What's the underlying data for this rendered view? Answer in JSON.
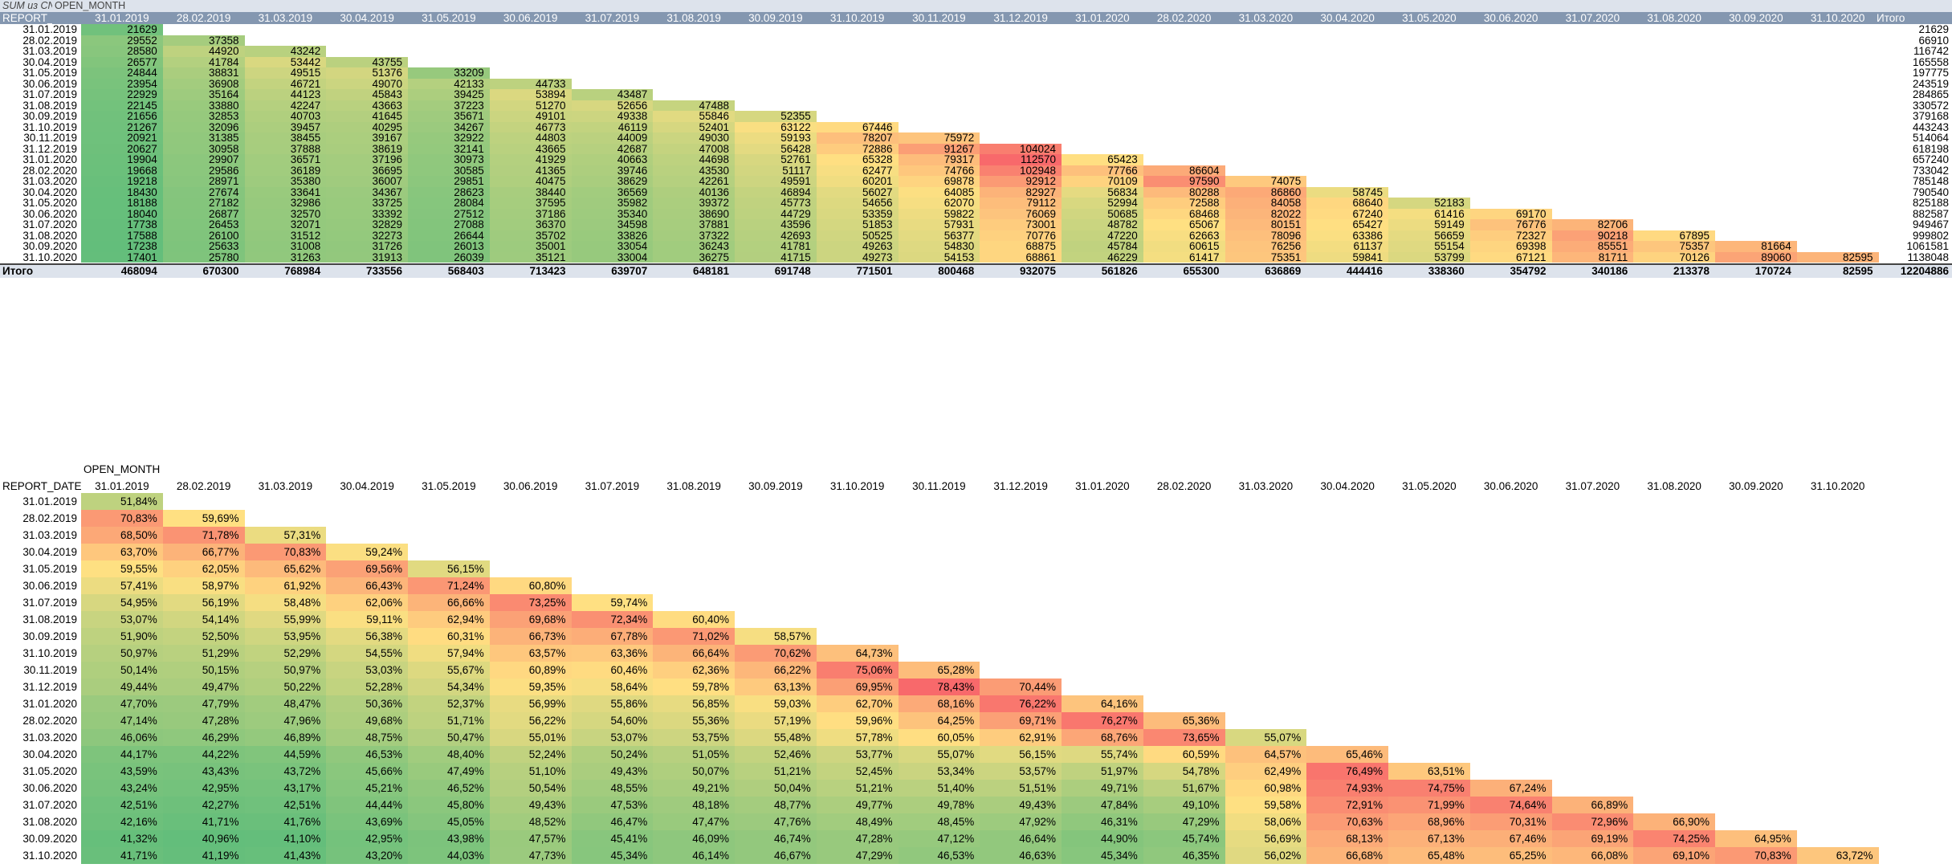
{
  "pivot1": {
    "title_field": "SUM из CNT_C",
    "column_field": "OPEN_MONTH",
    "row_field": "REPORT_DATE",
    "total_label": "Итого",
    "columns": [
      "31.01.2019",
      "28.02.2019",
      "31.03.2019",
      "30.04.2019",
      "31.05.2019",
      "30.06.2019",
      "31.07.2019",
      "31.08.2019",
      "30.09.2019",
      "31.10.2019",
      "30.11.2019",
      "31.12.2019",
      "31.01.2020",
      "28.02.2020",
      "31.03.2020",
      "30.04.2020",
      "31.05.2020",
      "30.06.2020",
      "31.07.2020",
      "31.08.2020",
      "30.09.2020",
      "31.10.2020"
    ],
    "rows": [
      {
        "label": "31.01.2019",
        "values": [
          "21629"
        ],
        "total": "21629"
      },
      {
        "label": "28.02.2019",
        "values": [
          "29552",
          "37358"
        ],
        "total": "66910"
      },
      {
        "label": "31.03.2019",
        "values": [
          "28580",
          "44920",
          "43242"
        ],
        "total": "116742"
      },
      {
        "label": "30.04.2019",
        "values": [
          "26577",
          "41784",
          "53442",
          "43755"
        ],
        "total": "165558"
      },
      {
        "label": "31.05.2019",
        "values": [
          "24844",
          "38831",
          "49515",
          "51376",
          "33209"
        ],
        "total": "197775"
      },
      {
        "label": "30.06.2019",
        "values": [
          "23954",
          "36908",
          "46721",
          "49070",
          "42133",
          "44733"
        ],
        "total": "243519"
      },
      {
        "label": "31.07.2019",
        "values": [
          "22929",
          "35164",
          "44123",
          "45843",
          "39425",
          "53894",
          "43487"
        ],
        "total": "284865"
      },
      {
        "label": "31.08.2019",
        "values": [
          "22145",
          "33880",
          "42247",
          "43663",
          "37223",
          "51270",
          "52656",
          "47488"
        ],
        "total": "330572"
      },
      {
        "label": "30.09.2019",
        "values": [
          "21656",
          "32853",
          "40703",
          "41645",
          "35671",
          "49101",
          "49338",
          "55846",
          "52355"
        ],
        "total": "379168"
      },
      {
        "label": "31.10.2019",
        "values": [
          "21267",
          "32096",
          "39457",
          "40295",
          "34267",
          "46773",
          "46119",
          "52401",
          "63122",
          "67446"
        ],
        "total": "443243"
      },
      {
        "label": "30.11.2019",
        "values": [
          "20921",
          "31385",
          "38455",
          "39167",
          "32922",
          "44803",
          "44009",
          "49030",
          "59193",
          "78207",
          "75972"
        ],
        "total": "514064"
      },
      {
        "label": "31.12.2019",
        "values": [
          "20627",
          "30958",
          "37888",
          "38619",
          "32141",
          "43665",
          "42687",
          "47008",
          "56428",
          "72886",
          "91267",
          "104024"
        ],
        "total": "618198"
      },
      {
        "label": "31.01.2020",
        "values": [
          "19904",
          "29907",
          "36571",
          "37196",
          "30973",
          "41929",
          "40663",
          "44698",
          "52761",
          "65328",
          "79317",
          "112570",
          "65423"
        ],
        "total": "657240"
      },
      {
        "label": "28.02.2020",
        "values": [
          "19668",
          "29586",
          "36189",
          "36695",
          "30585",
          "41365",
          "39746",
          "43530",
          "51117",
          "62477",
          "74766",
          "102948",
          "77766",
          "86604"
        ],
        "total": "733042"
      },
      {
        "label": "31.03.2020",
        "values": [
          "19218",
          "28971",
          "35380",
          "36007",
          "29851",
          "40475",
          "38629",
          "42261",
          "49591",
          "60201",
          "69878",
          "92912",
          "70109",
          "97590",
          "74075"
        ],
        "total": "785148"
      },
      {
        "label": "30.04.2020",
        "values": [
          "18430",
          "27674",
          "33641",
          "34367",
          "28623",
          "38440",
          "36569",
          "40136",
          "46894",
          "56027",
          "64085",
          "82927",
          "56834",
          "80288",
          "86860",
          "58745"
        ],
        "total": "790540"
      },
      {
        "label": "31.05.2020",
        "values": [
          "18188",
          "27182",
          "32986",
          "33725",
          "28084",
          "37595",
          "35982",
          "39372",
          "45773",
          "54656",
          "62070",
          "79112",
          "52994",
          "72588",
          "84058",
          "68640",
          "52183"
        ],
        "total": "825188"
      },
      {
        "label": "30.06.2020",
        "values": [
          "18040",
          "26877",
          "32570",
          "33392",
          "27512",
          "37186",
          "35340",
          "38690",
          "44729",
          "53359",
          "59822",
          "76069",
          "50685",
          "68468",
          "82022",
          "67240",
          "61416",
          "69170"
        ],
        "total": "882587"
      },
      {
        "label": "31.07.2020",
        "values": [
          "17738",
          "26453",
          "32071",
          "32829",
          "27088",
          "36370",
          "34598",
          "37881",
          "43596",
          "51853",
          "57931",
          "73001",
          "48782",
          "65067",
          "80151",
          "65427",
          "59149",
          "76776",
          "82706"
        ],
        "total": "949467"
      },
      {
        "label": "31.08.2020",
        "values": [
          "17588",
          "26100",
          "31512",
          "32273",
          "26644",
          "35702",
          "33826",
          "37322",
          "42693",
          "50525",
          "56377",
          "70776",
          "47220",
          "62663",
          "78096",
          "63386",
          "56659",
          "72327",
          "90218",
          "67895"
        ],
        "total": "999802"
      },
      {
        "label": "30.09.2020",
        "values": [
          "17238",
          "25633",
          "31008",
          "31726",
          "26013",
          "35001",
          "33054",
          "36243",
          "41781",
          "49263",
          "54830",
          "68875",
          "45784",
          "60615",
          "76256",
          "61137",
          "55154",
          "69398",
          "85551",
          "75357",
          "81664"
        ],
        "total": "1061581"
      },
      {
        "label": "31.10.2020",
        "values": [
          "17401",
          "25780",
          "31263",
          "31913",
          "26039",
          "35121",
          "33004",
          "36275",
          "41715",
          "49273",
          "54153",
          "68861",
          "46229",
          "61417",
          "75351",
          "59841",
          "53799",
          "67121",
          "81711",
          "70126",
          "89060",
          "82595"
        ],
        "total": "1138048"
      }
    ],
    "totals": [
      "468094",
      "670300",
      "768984",
      "733556",
      "568403",
      "713423",
      "639707",
      "648181",
      "691748",
      "771501",
      "800468",
      "932075",
      "561826",
      "655300",
      "636869",
      "444416",
      "338360",
      "354792",
      "340186",
      "213378",
      "170724",
      "82595"
    ],
    "grand_total": "12204886"
  },
  "pivot2": {
    "column_field": "OPEN_MONTH",
    "row_field": "REPORT_DATE",
    "columns": [
      "31.01.2019",
      "28.02.2019",
      "31.03.2019",
      "30.04.2019",
      "31.05.2019",
      "30.06.2019",
      "31.07.2019",
      "31.08.2019",
      "30.09.2019",
      "31.10.2019",
      "30.11.2019",
      "31.12.2019",
      "31.01.2020",
      "28.02.2020",
      "31.03.2020",
      "30.04.2020",
      "31.05.2020",
      "30.06.2020",
      "31.07.2020",
      "31.08.2020",
      "30.09.2020",
      "31.10.2020"
    ],
    "rows": [
      {
        "label": "31.01.2019",
        "values": [
          "51,84%"
        ]
      },
      {
        "label": "28.02.2019",
        "values": [
          "70,83%",
          "59,69%"
        ]
      },
      {
        "label": "31.03.2019",
        "values": [
          "68,50%",
          "71,78%",
          "57,31%"
        ]
      },
      {
        "label": "30.04.2019",
        "values": [
          "63,70%",
          "66,77%",
          "70,83%",
          "59,24%"
        ]
      },
      {
        "label": "31.05.2019",
        "values": [
          "59,55%",
          "62,05%",
          "65,62%",
          "69,56%",
          "56,15%"
        ]
      },
      {
        "label": "30.06.2019",
        "values": [
          "57,41%",
          "58,97%",
          "61,92%",
          "66,43%",
          "71,24%",
          "60,80%"
        ]
      },
      {
        "label": "31.07.2019",
        "values": [
          "54,95%",
          "56,19%",
          "58,48%",
          "62,06%",
          "66,66%",
          "73,25%",
          "59,74%"
        ]
      },
      {
        "label": "31.08.2019",
        "values": [
          "53,07%",
          "54,14%",
          "55,99%",
          "59,11%",
          "62,94%",
          "69,68%",
          "72,34%",
          "60,40%"
        ]
      },
      {
        "label": "30.09.2019",
        "values": [
          "51,90%",
          "52,50%",
          "53,95%",
          "56,38%",
          "60,31%",
          "66,73%",
          "67,78%",
          "71,02%",
          "58,57%"
        ]
      },
      {
        "label": "31.10.2019",
        "values": [
          "50,97%",
          "51,29%",
          "52,29%",
          "54,55%",
          "57,94%",
          "63,57%",
          "63,36%",
          "66,64%",
          "70,62%",
          "64,73%"
        ]
      },
      {
        "label": "30.11.2019",
        "values": [
          "50,14%",
          "50,15%",
          "50,97%",
          "53,03%",
          "55,67%",
          "60,89%",
          "60,46%",
          "62,36%",
          "66,22%",
          "75,06%",
          "65,28%"
        ]
      },
      {
        "label": "31.12.2019",
        "values": [
          "49,44%",
          "49,47%",
          "50,22%",
          "52,28%",
          "54,34%",
          "59,35%",
          "58,64%",
          "59,78%",
          "63,13%",
          "69,95%",
          "78,43%",
          "70,44%"
        ]
      },
      {
        "label": "31.01.2020",
        "values": [
          "47,70%",
          "47,79%",
          "48,47%",
          "50,36%",
          "52,37%",
          "56,99%",
          "55,86%",
          "56,85%",
          "59,03%",
          "62,70%",
          "68,16%",
          "76,22%",
          "64,16%"
        ]
      },
      {
        "label": "28.02.2020",
        "values": [
          "47,14%",
          "47,28%",
          "47,96%",
          "49,68%",
          "51,71%",
          "56,22%",
          "54,60%",
          "55,36%",
          "57,19%",
          "59,96%",
          "64,25%",
          "69,71%",
          "76,27%",
          "65,36%"
        ]
      },
      {
        "label": "31.03.2020",
        "values": [
          "46,06%",
          "46,29%",
          "46,89%",
          "48,75%",
          "50,47%",
          "55,01%",
          "53,07%",
          "53,75%",
          "55,48%",
          "57,78%",
          "60,05%",
          "62,91%",
          "68,76%",
          "73,65%",
          "55,07%"
        ]
      },
      {
        "label": "30.04.2020",
        "values": [
          "44,17%",
          "44,22%",
          "44,59%",
          "46,53%",
          "48,40%",
          "52,24%",
          "50,24%",
          "51,05%",
          "52,46%",
          "53,77%",
          "55,07%",
          "56,15%",
          "55,74%",
          "60,59%",
          "64,57%",
          "65,46%"
        ]
      },
      {
        "label": "31.05.2020",
        "values": [
          "43,59%",
          "43,43%",
          "43,72%",
          "45,66%",
          "47,49%",
          "51,10%",
          "49,43%",
          "50,07%",
          "51,21%",
          "52,45%",
          "53,34%",
          "53,57%",
          "51,97%",
          "54,78%",
          "62,49%",
          "76,49%",
          "63,51%"
        ]
      },
      {
        "label": "30.06.2020",
        "values": [
          "43,24%",
          "42,95%",
          "43,17%",
          "45,21%",
          "46,52%",
          "50,54%",
          "48,55%",
          "49,21%",
          "50,04%",
          "51,21%",
          "51,40%",
          "51,51%",
          "49,71%",
          "51,67%",
          "60,98%",
          "74,93%",
          "74,75%",
          "67,24%"
        ]
      },
      {
        "label": "31.07.2020",
        "values": [
          "42,51%",
          "42,27%",
          "42,51%",
          "44,44%",
          "45,80%",
          "49,43%",
          "47,53%",
          "48,18%",
          "48,77%",
          "49,77%",
          "49,78%",
          "49,43%",
          "47,84%",
          "49,10%",
          "59,58%",
          "72,91%",
          "71,99%",
          "74,64%",
          "66,89%"
        ]
      },
      {
        "label": "31.08.2020",
        "values": [
          "42,16%",
          "41,71%",
          "41,76%",
          "43,69%",
          "45,05%",
          "48,52%",
          "46,47%",
          "47,47%",
          "47,76%",
          "48,49%",
          "48,45%",
          "47,92%",
          "46,31%",
          "47,29%",
          "58,06%",
          "70,63%",
          "68,96%",
          "70,31%",
          "72,96%",
          "66,90%"
        ]
      },
      {
        "label": "30.09.2020",
        "values": [
          "41,32%",
          "40,96%",
          "41,10%",
          "42,95%",
          "43,98%",
          "47,57%",
          "45,41%",
          "46,09%",
          "46,74%",
          "47,28%",
          "47,12%",
          "46,64%",
          "44,90%",
          "45,74%",
          "56,69%",
          "68,13%",
          "67,13%",
          "67,46%",
          "69,19%",
          "74,25%",
          "64,95%"
        ]
      },
      {
        "label": "31.10.2020",
        "values": [
          "41,71%",
          "41,19%",
          "41,43%",
          "43,20%",
          "44,03%",
          "47,73%",
          "45,34%",
          "46,14%",
          "46,67%",
          "47,29%",
          "46,53%",
          "46,63%",
          "45,34%",
          "46,35%",
          "56,02%",
          "66,68%",
          "65,48%",
          "65,25%",
          "66,08%",
          "69,10%",
          "70,83%",
          "63,72%"
        ]
      }
    ]
  },
  "colors": {
    "header_band": "#dde3ec",
    "column_header_band": "#8497b0",
    "scale_min": "#63be7b",
    "scale_mid": "#ffe082",
    "scale_max": "#f8696b",
    "totals_border": "#444444"
  }
}
